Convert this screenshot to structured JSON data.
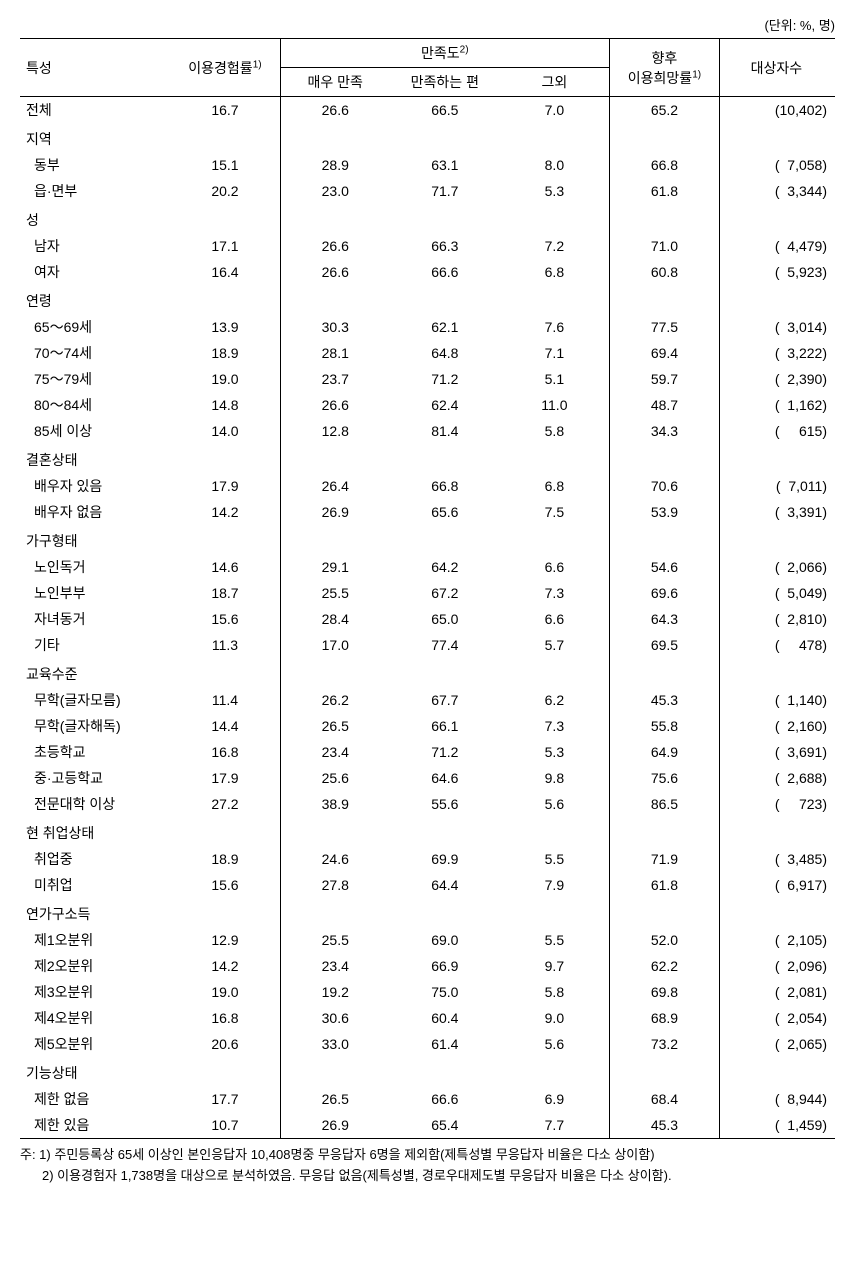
{
  "unit_label": "(단위: %, 명)",
  "headers": {
    "attr": "특성",
    "experience": "이용경험률",
    "experience_sup": "1)",
    "satisfaction": "만족도",
    "satisfaction_sup": "2)",
    "very_satisfied": "매우 만족",
    "somewhat_satisfied": "만족하는 편",
    "other": "그외",
    "future_hope": "향후",
    "future_hope2": "이용희망률",
    "future_hope_sup": "1)",
    "count": "대상자수"
  },
  "sections": [
    {
      "group": null,
      "rows": [
        {
          "label": "전체",
          "indent": false,
          "vals": [
            "16.7",
            "26.6",
            "66.5",
            "7.0",
            "65.2"
          ],
          "count": "(10,402)"
        }
      ]
    },
    {
      "group": "지역",
      "rows": [
        {
          "label": "동부",
          "indent": true,
          "vals": [
            "15.1",
            "28.9",
            "63.1",
            "8.0",
            "66.8"
          ],
          "count": "(  7,058)"
        },
        {
          "label": "읍·면부",
          "indent": true,
          "vals": [
            "20.2",
            "23.0",
            "71.7",
            "5.3",
            "61.8"
          ],
          "count": "(  3,344)"
        }
      ]
    },
    {
      "group": "성",
      "rows": [
        {
          "label": "남자",
          "indent": true,
          "vals": [
            "17.1",
            "26.6",
            "66.3",
            "7.2",
            "71.0"
          ],
          "count": "(  4,479)"
        },
        {
          "label": "여자",
          "indent": true,
          "vals": [
            "16.4",
            "26.6",
            "66.6",
            "6.8",
            "60.8"
          ],
          "count": "(  5,923)"
        }
      ]
    },
    {
      "group": "연령",
      "rows": [
        {
          "label": "65～69세",
          "indent": true,
          "vals": [
            "13.9",
            "30.3",
            "62.1",
            "7.6",
            "77.5"
          ],
          "count": "(  3,014)"
        },
        {
          "label": "70～74세",
          "indent": true,
          "vals": [
            "18.9",
            "28.1",
            "64.8",
            "7.1",
            "69.4"
          ],
          "count": "(  3,222)"
        },
        {
          "label": "75～79세",
          "indent": true,
          "vals": [
            "19.0",
            "23.7",
            "71.2",
            "5.1",
            "59.7"
          ],
          "count": "(  2,390)"
        },
        {
          "label": "80～84세",
          "indent": true,
          "vals": [
            "14.8",
            "26.6",
            "62.4",
            "11.0",
            "48.7"
          ],
          "count": "(  1,162)"
        },
        {
          "label": "85세 이상",
          "indent": true,
          "vals": [
            "14.0",
            "12.8",
            "81.4",
            "5.8",
            "34.3"
          ],
          "count": "(     615)"
        }
      ]
    },
    {
      "group": "결혼상태",
      "rows": [
        {
          "label": "배우자 있음",
          "indent": true,
          "vals": [
            "17.9",
            "26.4",
            "66.8",
            "6.8",
            "70.6"
          ],
          "count": "(  7,011)"
        },
        {
          "label": "배우자 없음",
          "indent": true,
          "vals": [
            "14.2",
            "26.9",
            "65.6",
            "7.5",
            "53.9"
          ],
          "count": "(  3,391)"
        }
      ]
    },
    {
      "group": "가구형태",
      "rows": [
        {
          "label": "노인독거",
          "indent": true,
          "vals": [
            "14.6",
            "29.1",
            "64.2",
            "6.6",
            "54.6"
          ],
          "count": "(  2,066)"
        },
        {
          "label": "노인부부",
          "indent": true,
          "vals": [
            "18.7",
            "25.5",
            "67.2",
            "7.3",
            "69.6"
          ],
          "count": "(  5,049)"
        },
        {
          "label": "자녀동거",
          "indent": true,
          "vals": [
            "15.6",
            "28.4",
            "65.0",
            "6.6",
            "64.3"
          ],
          "count": "(  2,810)"
        },
        {
          "label": "기타",
          "indent": true,
          "vals": [
            "11.3",
            "17.0",
            "77.4",
            "5.7",
            "69.5"
          ],
          "count": "(     478)"
        }
      ]
    },
    {
      "group": "교육수준",
      "rows": [
        {
          "label": "무학(글자모름)",
          "indent": true,
          "vals": [
            "11.4",
            "26.2",
            "67.7",
            "6.2",
            "45.3"
          ],
          "count": "(  1,140)"
        },
        {
          "label": "무학(글자해독)",
          "indent": true,
          "vals": [
            "14.4",
            "26.5",
            "66.1",
            "7.3",
            "55.8"
          ],
          "count": "(  2,160)"
        },
        {
          "label": "초등학교",
          "indent": true,
          "vals": [
            "16.8",
            "23.4",
            "71.2",
            "5.3",
            "64.9"
          ],
          "count": "(  3,691)"
        },
        {
          "label": "중·고등학교",
          "indent": true,
          "vals": [
            "17.9",
            "25.6",
            "64.6",
            "9.8",
            "75.6"
          ],
          "count": "(  2,688)"
        },
        {
          "label": "전문대학 이상",
          "indent": true,
          "vals": [
            "27.2",
            "38.9",
            "55.6",
            "5.6",
            "86.5"
          ],
          "count": "(     723)"
        }
      ]
    },
    {
      "group": "현 취업상태",
      "rows": [
        {
          "label": "취업중",
          "indent": true,
          "vals": [
            "18.9",
            "24.6",
            "69.9",
            "5.5",
            "71.9"
          ],
          "count": "(  3,485)"
        },
        {
          "label": "미취업",
          "indent": true,
          "vals": [
            "15.6",
            "27.8",
            "64.4",
            "7.9",
            "61.8"
          ],
          "count": "(  6,917)"
        }
      ]
    },
    {
      "group": "연가구소득",
      "rows": [
        {
          "label": "제1오분위",
          "indent": true,
          "vals": [
            "12.9",
            "25.5",
            "69.0",
            "5.5",
            "52.0"
          ],
          "count": "(  2,105)"
        },
        {
          "label": "제2오분위",
          "indent": true,
          "vals": [
            "14.2",
            "23.4",
            "66.9",
            "9.7",
            "62.2"
          ],
          "count": "(  2,096)"
        },
        {
          "label": "제3오분위",
          "indent": true,
          "vals": [
            "19.0",
            "19.2",
            "75.0",
            "5.8",
            "69.8"
          ],
          "count": "(  2,081)"
        },
        {
          "label": "제4오분위",
          "indent": true,
          "vals": [
            "16.8",
            "30.6",
            "60.4",
            "9.0",
            "68.9"
          ],
          "count": "(  2,054)"
        },
        {
          "label": "제5오분위",
          "indent": true,
          "vals": [
            "20.6",
            "33.0",
            "61.4",
            "5.6",
            "73.2"
          ],
          "count": "(  2,065)"
        }
      ]
    },
    {
      "group": "기능상태",
      "rows": [
        {
          "label": "제한 없음",
          "indent": true,
          "vals": [
            "17.7",
            "26.5",
            "66.6",
            "6.9",
            "68.4"
          ],
          "count": "(  8,944)"
        },
        {
          "label": "제한 있음",
          "indent": true,
          "vals": [
            "10.7",
            "26.9",
            "65.4",
            "7.7",
            "45.3"
          ],
          "count": "(  1,459)"
        }
      ]
    }
  ],
  "footnotes": {
    "line1": "주: 1) 주민등록상 65세 이상인 본인응답자 10,408명중 무응답자 6명을 제외함(제특성별 무응답자 비율은 다소 상이함)",
    "line2": "2) 이용경험자 1,738명을 대상으로 분석하였음. 무응답 없음(제특성별, 경로우대제도별 무응답자 비율은 다소 상이함)."
  }
}
